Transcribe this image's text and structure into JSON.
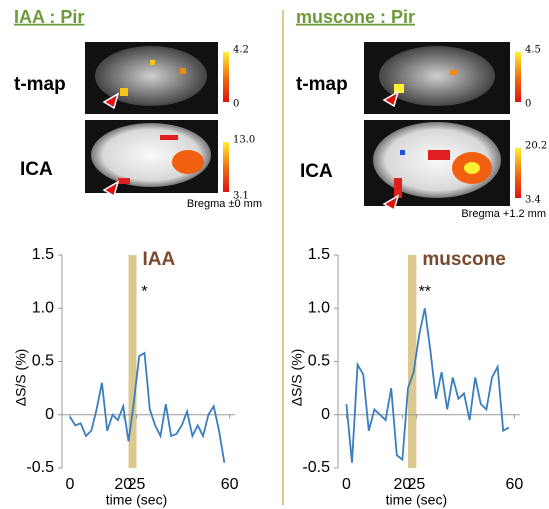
{
  "panels": [
    {
      "header": "IAA : Pir",
      "rows": [
        {
          "label": "t-map",
          "colorbar_max": 4.2,
          "colorbar_min": 0
        },
        {
          "label": "ICA",
          "colorbar_max": {
            "value": 13,
            "label": "13.0"
          },
          "colorbar_min": 3.1
        }
      ],
      "bregma": "Bregma ±0 mm"
    },
    {
      "header": "muscone : Pir",
      "rows": [
        {
          "label": "t-map",
          "colorbar_max": 4.5,
          "colorbar_min": 0
        },
        {
          "label": "ICA",
          "colorbar_max": 20.2,
          "colorbar_min": 3.4
        }
      ],
      "bregma": "Bregma +1.2 mm"
    }
  ],
  "chart_data": [
    {
      "type": "line",
      "title": "IAA",
      "x_label": "time (sec)",
      "y_label": "ΔS/S (%)",
      "stimulus": [
        22,
        25
      ],
      "stimulus_color": "#dcc98f",
      "annotations": [
        "*"
      ],
      "x": [
        0,
        2,
        4,
        6,
        8,
        10,
        12,
        14,
        16,
        18,
        20,
        22,
        24,
        26,
        28,
        30,
        32,
        34,
        36,
        38,
        40,
        42,
        44,
        46,
        48,
        50,
        52,
        54,
        56,
        58
      ],
      "series": [
        {
          "name": "IAA",
          "color": "#3a7ebf",
          "values": [
            -0.02,
            -0.1,
            -0.08,
            -0.2,
            -0.15,
            0.05,
            0.3,
            -0.15,
            0.0,
            -0.05,
            0.08,
            -0.25,
            0.12,
            0.55,
            0.58,
            0.05,
            -0.1,
            -0.2,
            0.1,
            -0.2,
            -0.18,
            -0.1,
            0.03,
            -0.2,
            -0.1,
            -0.2,
            0.0,
            0.08,
            -0.15,
            -0.45
          ]
        }
      ],
      "xlim": [
        -3,
        62
      ],
      "xticks": [
        0,
        20,
        25,
        60
      ],
      "ylim": [
        -0.5,
        1.5
      ],
      "yticks": [
        -0.5,
        0,
        0.5,
        {
          "value": 1,
          "label": "1.0"
        },
        1.5
      ]
    },
    {
      "type": "line",
      "title": "muscone",
      "x_label": "time (sec)",
      "y_label": "ΔS/S (%)",
      "stimulus": [
        22,
        25
      ],
      "stimulus_color": "#dcc98f",
      "annotations": [
        "**"
      ],
      "x": [
        0,
        2,
        4,
        6,
        8,
        10,
        12,
        14,
        16,
        18,
        20,
        22,
        24,
        26,
        28,
        30,
        32,
        34,
        36,
        38,
        40,
        42,
        44,
        46,
        48,
        50,
        52,
        54,
        56,
        58
      ],
      "series": [
        {
          "name": "muscone",
          "color": "#3a7ebf",
          "values": [
            0.1,
            -0.45,
            0.47,
            0.38,
            -0.15,
            0.05,
            0.0,
            -0.05,
            0.25,
            -0.38,
            -0.42,
            0.25,
            0.4,
            0.75,
            1.0,
            0.6,
            0.15,
            0.4,
            0.05,
            0.35,
            0.15,
            0.2,
            -0.05,
            0.35,
            0.1,
            0.05,
            0.35,
            0.45,
            -0.15,
            -0.12
          ]
        }
      ],
      "xlim": [
        -3,
        62
      ],
      "xticks": [
        0,
        20,
        25,
        60
      ],
      "ylim": [
        -0.5,
        1.5
      ],
      "yticks": [
        -0.5,
        0,
        0.5,
        {
          "value": 1,
          "label": "1.0"
        },
        1.5
      ]
    }
  ]
}
